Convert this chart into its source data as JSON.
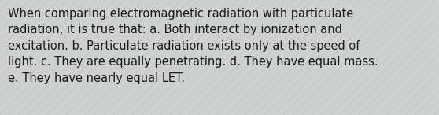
{
  "text_line1": "When comparing electromagnetic radiation with particulate",
  "text_line2": "radiation, it is true that: a. Both interact by ionization and",
  "text_line3": "excitation. b. Particulate radiation exists only at the speed of",
  "text_line4": "light. c. They are equally penetrating. d. They have equal mass.",
  "text_line5": "e. They have nearly equal LET.",
  "bg_color": "#cdd1d1",
  "stripe_color": "#c0c5c5",
  "text_color": "#1a1a1a",
  "font_size": 10.5,
  "fig_width": 5.58,
  "fig_height": 1.46,
  "dpi": 100
}
